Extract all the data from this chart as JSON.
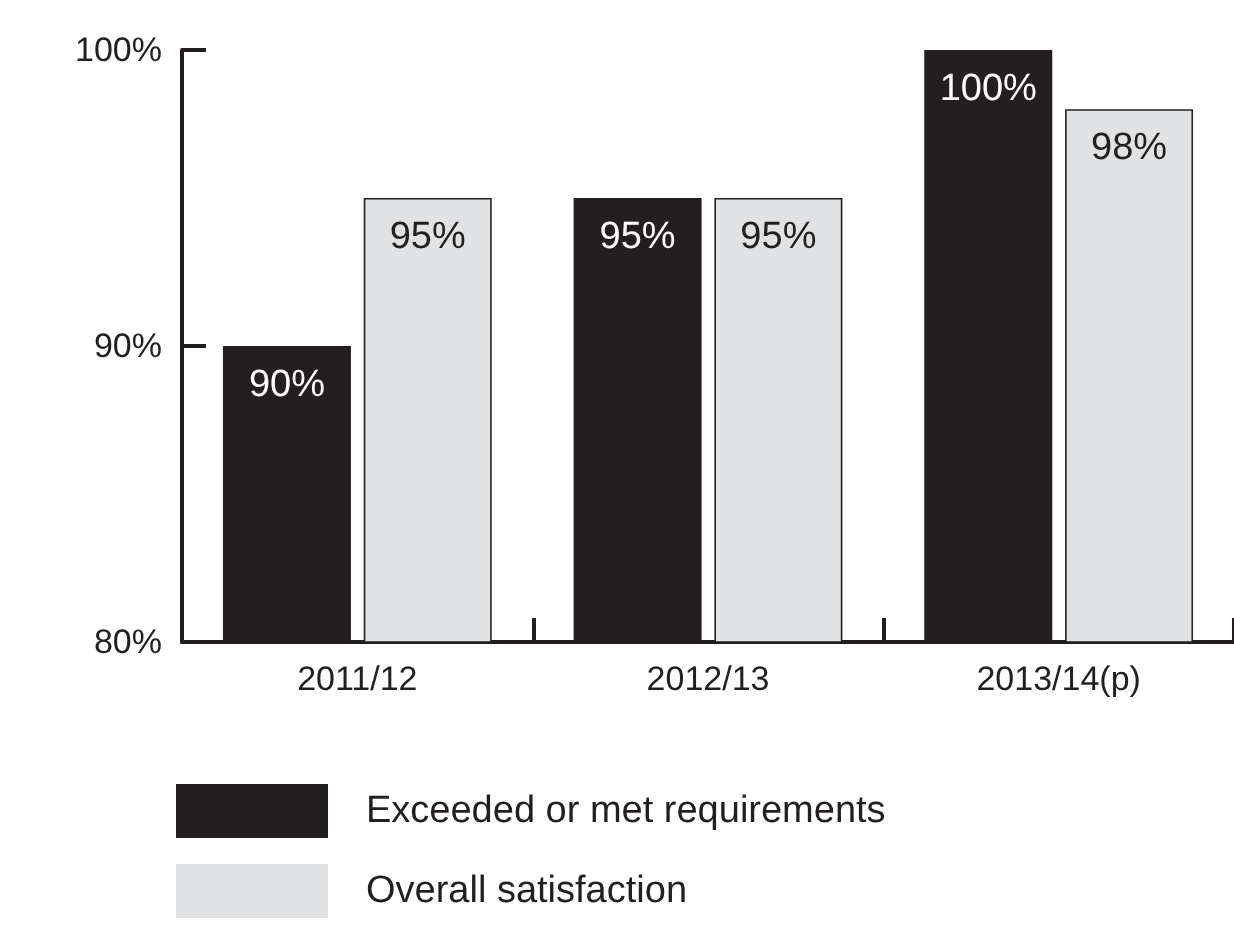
{
  "chart_data": {
    "type": "bar",
    "categories": [
      "2011/12",
      "2012/13",
      "2013/14(p)"
    ],
    "series": [
      {
        "name": "Exceeded or met requirements",
        "color": "#231f20",
        "values": [
          90,
          95,
          100
        ],
        "value_labels": [
          "90%",
          "95%",
          "100%"
        ]
      },
      {
        "name": "Overall satisfaction",
        "color": "#e1e2e4",
        "values": [
          95,
          95,
          98
        ],
        "value_labels": [
          "95%",
          "95%",
          "98%"
        ]
      }
    ],
    "ylim": [
      80,
      100
    ],
    "yticks": [
      {
        "value": 80,
        "label": "80%"
      },
      {
        "value": 90,
        "label": "90%"
      },
      {
        "value": 100,
        "label": "100%"
      }
    ],
    "grid": false,
    "legend": "bottom"
  }
}
